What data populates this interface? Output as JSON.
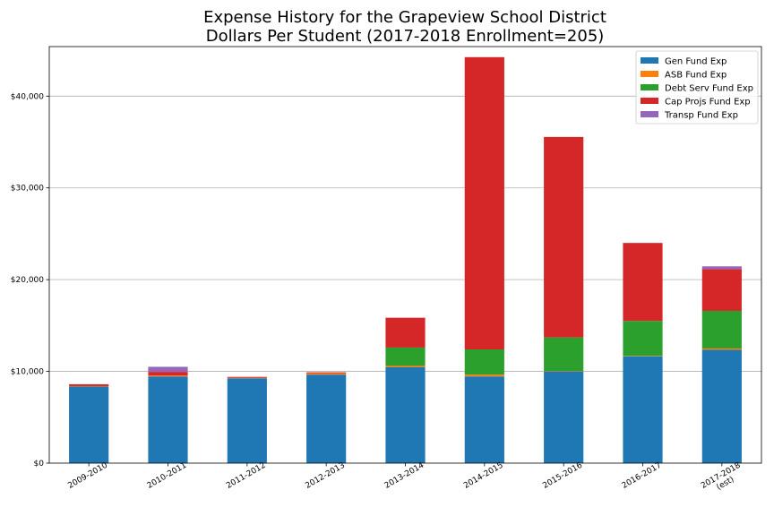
{
  "chart_data": {
    "type": "bar",
    "stacked": true,
    "title": "Expense History for the Grapeview School District",
    "subtitle": "Dollars Per Student (2017-2018 Enrollment=205)",
    "xlabel": "",
    "ylabel": "",
    "ylim": [
      0,
      45400
    ],
    "yticks": [
      0,
      10000,
      20000,
      30000,
      40000
    ],
    "ytick_labels": [
      "$0",
      "$10,000",
      "$20,000",
      "$30,000",
      "$40,000"
    ],
    "grid": "horizontal",
    "legend_position": "top-right",
    "categories": [
      "2009-2010",
      "2010-2011",
      "2011-2012",
      "2012-2013",
      "2013-2014",
      "2014-2015",
      "2015-2016",
      "2016-2017",
      "2017-2018\n(est)"
    ],
    "series": [
      {
        "name": "Gen Fund Exp",
        "color": "#1f77b4",
        "values": [
          8350,
          9450,
          9250,
          9650,
          10450,
          9450,
          10000,
          11650,
          12350
        ]
      },
      {
        "name": "ASB Fund Exp",
        "color": "#ff7f0e",
        "values": [
          50,
          100,
          50,
          150,
          150,
          200,
          50,
          50,
          150
        ]
      },
      {
        "name": "Debt Serv Fund Exp",
        "color": "#2ca02c",
        "values": [
          0,
          0,
          0,
          0,
          2000,
          2750,
          3650,
          3800,
          4100
        ]
      },
      {
        "name": "Cap Projs Fund Exp",
        "color": "#d62728",
        "values": [
          200,
          400,
          100,
          100,
          3250,
          31850,
          21850,
          8500,
          4550
        ]
      },
      {
        "name": "Transp Fund Exp",
        "color": "#9467bd",
        "values": [
          0,
          550,
          0,
          0,
          0,
          0,
          0,
          0,
          300
        ]
      }
    ]
  }
}
